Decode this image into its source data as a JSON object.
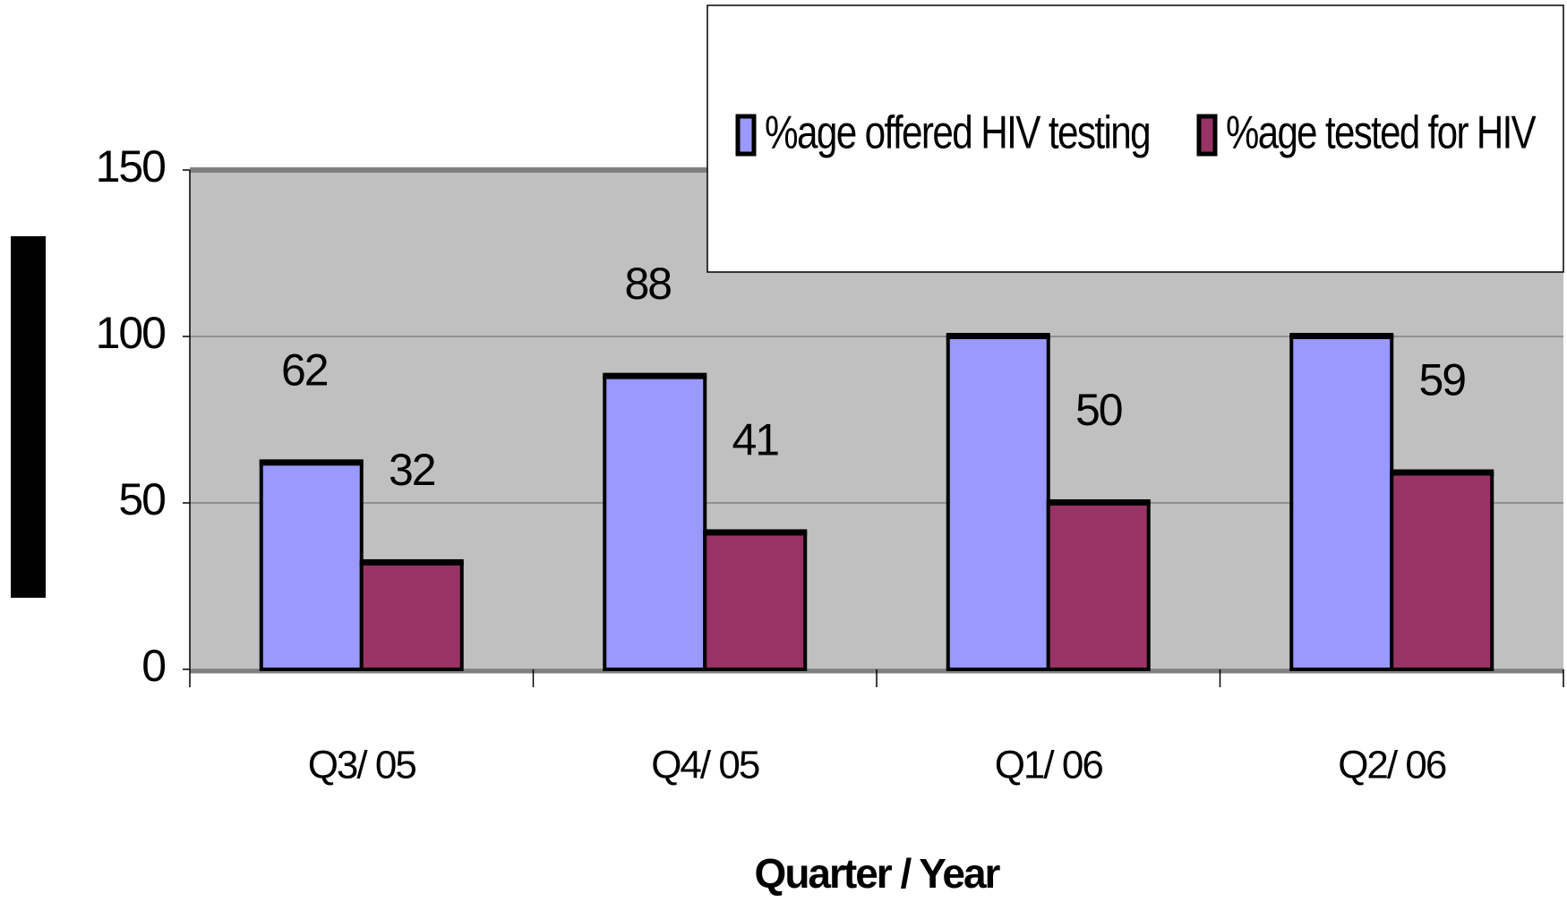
{
  "chart_data": {
    "type": "bar",
    "x_label": "Quarter / Year",
    "categories": [
      "Q3/ 05",
      "Q4/ 05",
      "Q1/ 06",
      "Q2/ 06"
    ],
    "series": [
      {
        "name": "%age offered HIV testing",
        "color": "#9999ff",
        "values": [
          62,
          88,
          100,
          100
        ]
      },
      {
        "name": "%age tested for HIV",
        "color": "#993366",
        "values": [
          32,
          41,
          50,
          59
        ]
      }
    ],
    "ylim": [
      0,
      150
    ],
    "yticks": [
      0,
      50,
      100,
      150
    ],
    "grid": true,
    "legend": "top-right"
  }
}
